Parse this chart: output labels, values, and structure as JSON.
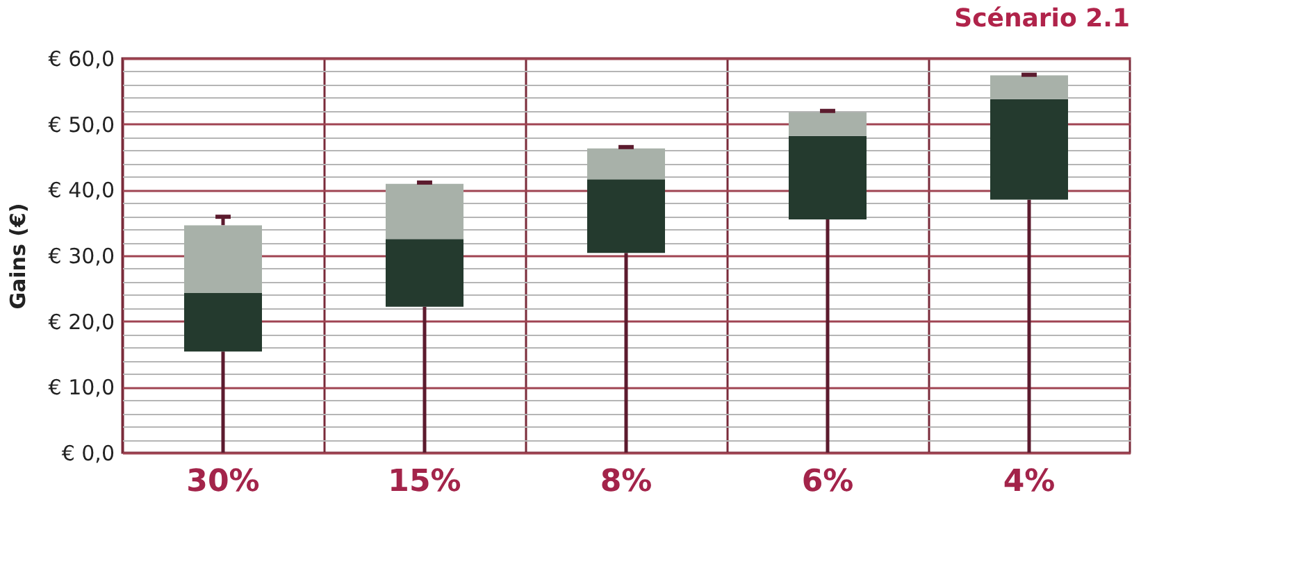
{
  "chart_data": {
    "type": "box",
    "title": "Scénario 2.1",
    "ylabel": "Gains (€)",
    "categories": [
      "30%",
      "15%",
      "8%",
      "6%",
      "4%"
    ],
    "boxes": [
      {
        "low": 0,
        "q1": 15.4,
        "median": 24.3,
        "q3": 34.6,
        "high": 35.9
      },
      {
        "low": 0,
        "q1": 22.2,
        "median": 32.5,
        "q3": 40.9,
        "high": 41.1
      },
      {
        "low": 0,
        "q1": 30.4,
        "median": 41.6,
        "q3": 46.3,
        "high": 46.5
      },
      {
        "low": 0,
        "q1": 35.5,
        "median": 48.2,
        "q3": 51.8,
        "high": 52.0
      },
      {
        "low": 0,
        "q1": 38.5,
        "median": 53.8,
        "q3": 57.4,
        "high": 57.5
      }
    ],
    "colors": [
      "#243a2e",
      "#243a2e",
      "#243a2e",
      "#243a2e",
      "#243a2e"
    ],
    "ylim": [
      0,
      60
    ],
    "yticks": [
      {
        "value": 0,
        "label": "€ 0,0"
      },
      {
        "value": 2,
        "label": null
      },
      {
        "value": 4,
        "label": null
      },
      {
        "value": 6,
        "label": null
      },
      {
        "value": 8,
        "label": null
      },
      {
        "value": 10,
        "label": "€ 10,0"
      },
      {
        "value": 12,
        "label": null
      },
      {
        "value": 14,
        "label": null
      },
      {
        "value": 16,
        "label": null
      },
      {
        "value": 18,
        "label": null
      },
      {
        "value": 20,
        "label": "€ 20,0"
      },
      {
        "value": 22,
        "label": null
      },
      {
        "value": 24,
        "label": null
      },
      {
        "value": 26,
        "label": null
      },
      {
        "value": 28,
        "label": null
      },
      {
        "value": 30,
        "label": "€ 30,0"
      },
      {
        "value": 32,
        "label": null
      },
      {
        "value": 34,
        "label": null
      },
      {
        "value": 36,
        "label": null
      },
      {
        "value": 38,
        "label": null
      },
      {
        "value": 40,
        "label": "€ 40,0"
      },
      {
        "value": 42,
        "label": null
      },
      {
        "value": 44,
        "label": null
      },
      {
        "value": 46,
        "label": null
      },
      {
        "value": 48,
        "label": null
      },
      {
        "value": 50,
        "label": "€ 50,0"
      },
      {
        "value": 52,
        "label": null
      },
      {
        "value": 54,
        "label": null
      },
      {
        "value": 56,
        "label": null
      },
      {
        "value": 58,
        "label": null
      },
      {
        "value": 60,
        "label": "€ 60,0"
      }
    ],
    "grid": true
  }
}
